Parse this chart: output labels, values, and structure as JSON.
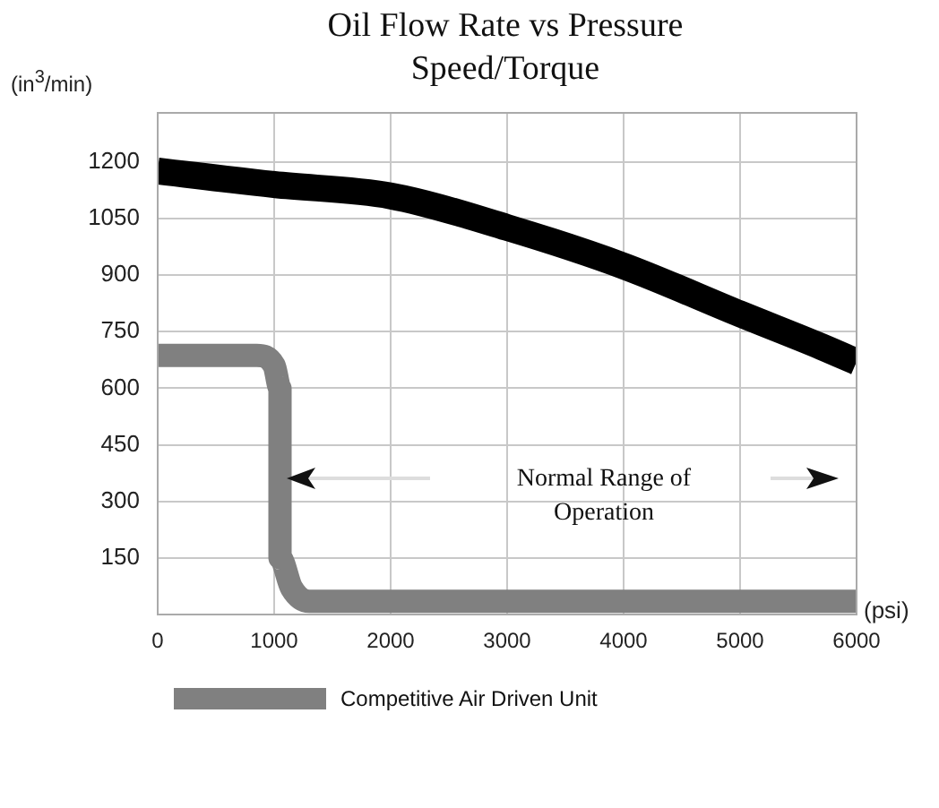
{
  "chart_data": {
    "type": "line",
    "title": "Oil Flow Rate vs Pressure",
    "subtitle": "Speed/Torque",
    "xlabel": "(psi)",
    "ylabel": "(in$^{3}$/min)",
    "annotations": [
      "Normal Range of Operation"
    ],
    "xlim": [
      0,
      6000
    ],
    "xticks": [
      0,
      1000,
      2000,
      3000,
      4000,
      5000,
      6000
    ],
    "ylim": [
      0,
      1330
    ],
    "yticks": [
      150,
      300,
      450,
      600,
      750,
      900,
      1050,
      1200
    ],
    "grid": true,
    "legend": "bottom",
    "marker": "none",
    "line_style": "solid",
    "series": [
      {
        "color": "#000000",
        "x": [
          0,
          1000,
          2000,
          3000,
          4000,
          5000,
          5700,
          6000
        ],
        "values": [
          1176,
          1140,
          1110,
          1026,
          924,
          797,
          710,
          670
        ]
      },
      {
        "name": "Competitive Air Driven Unit",
        "color": "#808080",
        "x": [
          0,
          850,
          1000,
          1050,
          1050,
          1150,
          1300,
          6000
        ],
        "values": [
          687,
          687,
          660,
          600,
          150,
          70,
          35,
          35
        ]
      }
    ]
  }
}
